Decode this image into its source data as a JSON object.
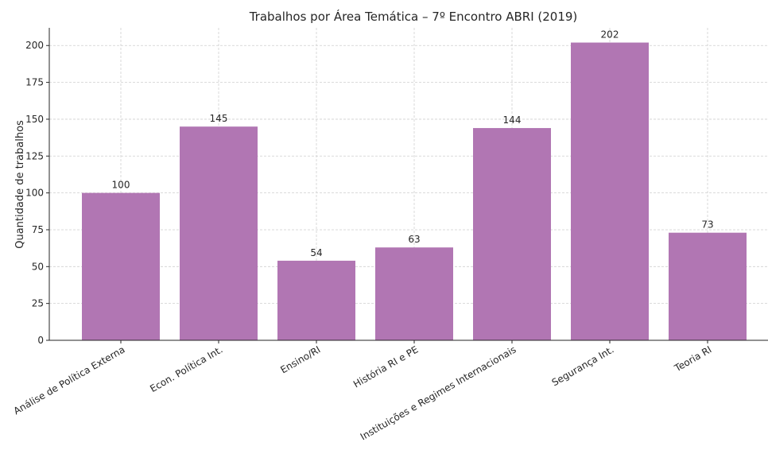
{
  "chart_data": {
    "type": "bar",
    "title": "Trabalhos por Área Temática – 7º Encontro ABRI (2019)",
    "xlabel": "",
    "ylabel": "Quantidade de trabalhos",
    "categories": [
      "Análise de Política Externa",
      "Econ. Política Int.",
      "Ensino/RI",
      "História RI e PE",
      "Instituições e Regimes Internacionais",
      "Segurança Int.",
      "Teoria RI"
    ],
    "values": [
      100,
      145,
      54,
      63,
      144,
      202,
      73
    ],
    "data_labels": [
      "100",
      "145",
      "54",
      "63",
      "144",
      "202",
      "73"
    ],
    "ylim": [
      0,
      212
    ],
    "yticks": [
      0,
      25,
      50,
      75,
      100,
      125,
      150,
      175,
      200
    ],
    "bar_color": "#b176b3",
    "grid": true,
    "legend": "none"
  }
}
